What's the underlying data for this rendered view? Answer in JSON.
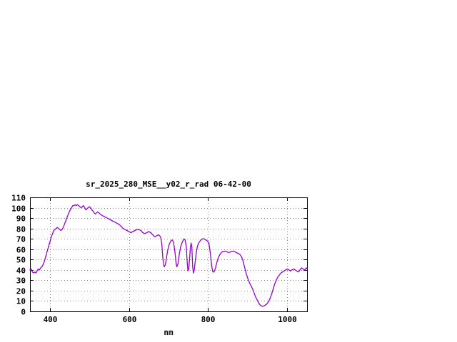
{
  "page": {
    "background": "#ffffff"
  },
  "chart_data": {
    "type": "line",
    "title": "sr_2025_280_MSE__y02_r_rad 06-42-00",
    "xlabel": "nm",
    "ylabel": "",
    "xlim": [
      350,
      1050
    ],
    "ylim": [
      0,
      110
    ],
    "xticks": [
      400,
      600,
      800,
      1000
    ],
    "yticks": [
      0,
      10,
      20,
      30,
      40,
      50,
      60,
      70,
      80,
      90,
      100,
      110
    ],
    "grid": true,
    "legend": "none",
    "line_color": "#9400D3",
    "grid_color": "#888888",
    "border_color": "#000000",
    "text_color": "#000000",
    "series": [
      {
        "name": "sr_2025_280_MSE__y02_r_rad",
        "points": [
          [
            350,
            40
          ],
          [
            353,
            41
          ],
          [
            356,
            38
          ],
          [
            359,
            37
          ],
          [
            362,
            38
          ],
          [
            365,
            37
          ],
          [
            368,
            39
          ],
          [
            371,
            41
          ],
          [
            374,
            40
          ],
          [
            377,
            42
          ],
          [
            380,
            43
          ],
          [
            383,
            45
          ],
          [
            386,
            48
          ],
          [
            389,
            52
          ],
          [
            392,
            56
          ],
          [
            395,
            60
          ],
          [
            398,
            64
          ],
          [
            401,
            68
          ],
          [
            404,
            72
          ],
          [
            407,
            75
          ],
          [
            410,
            78
          ],
          [
            413,
            79
          ],
          [
            416,
            80
          ],
          [
            419,
            81
          ],
          [
            422,
            80
          ],
          [
            425,
            79
          ],
          [
            428,
            78
          ],
          [
            431,
            79
          ],
          [
            434,
            81
          ],
          [
            437,
            84
          ],
          [
            440,
            87
          ],
          [
            443,
            90
          ],
          [
            446,
            93
          ],
          [
            449,
            96
          ],
          [
            452,
            98
          ],
          [
            455,
            100
          ],
          [
            458,
            102
          ],
          [
            461,
            102
          ],
          [
            464,
            103
          ],
          [
            467,
            102
          ],
          [
            470,
            103
          ],
          [
            473,
            102
          ],
          [
            476,
            101
          ],
          [
            479,
            100
          ],
          [
            482,
            101
          ],
          [
            485,
            102
          ],
          [
            488,
            100
          ],
          [
            491,
            98
          ],
          [
            494,
            99
          ],
          [
            497,
            100
          ],
          [
            500,
            101
          ],
          [
            503,
            100
          ],
          [
            506,
            98
          ],
          [
            509,
            97
          ],
          [
            512,
            95
          ],
          [
            515,
            94
          ],
          [
            518,
            95
          ],
          [
            521,
            96
          ],
          [
            524,
            95
          ],
          [
            527,
            94
          ],
          [
            530,
            93
          ],
          [
            535,
            92
          ],
          [
            540,
            91
          ],
          [
            545,
            90
          ],
          [
            550,
            89
          ],
          [
            555,
            88
          ],
          [
            560,
            87
          ],
          [
            565,
            86
          ],
          [
            570,
            85
          ],
          [
            575,
            84
          ],
          [
            580,
            82
          ],
          [
            585,
            80
          ],
          [
            590,
            79
          ],
          [
            595,
            78
          ],
          [
            600,
            77
          ],
          [
            605,
            76
          ],
          [
            610,
            77
          ],
          [
            615,
            78
          ],
          [
            620,
            79
          ],
          [
            625,
            79
          ],
          [
            630,
            78
          ],
          [
            635,
            76
          ],
          [
            640,
            75
          ],
          [
            645,
            76
          ],
          [
            650,
            77
          ],
          [
            655,
            76
          ],
          [
            660,
            74
          ],
          [
            665,
            72
          ],
          [
            670,
            73
          ],
          [
            675,
            74
          ],
          [
            680,
            72
          ],
          [
            683,
            65
          ],
          [
            686,
            50
          ],
          [
            689,
            43
          ],
          [
            692,
            45
          ],
          [
            695,
            52
          ],
          [
            698,
            59
          ],
          [
            702,
            65
          ],
          [
            706,
            68
          ],
          [
            710,
            69
          ],
          [
            713,
            66
          ],
          [
            716,
            58
          ],
          [
            719,
            47
          ],
          [
            721,
            43
          ],
          [
            724,
            46
          ],
          [
            727,
            55
          ],
          [
            731,
            63
          ],
          [
            735,
            67
          ],
          [
            739,
            70
          ],
          [
            742,
            69
          ],
          [
            745,
            62
          ],
          [
            747,
            48
          ],
          [
            749,
            39
          ],
          [
            751,
            41
          ],
          [
            753,
            50
          ],
          [
            755,
            61
          ],
          [
            757,
            66
          ],
          [
            759,
            62
          ],
          [
            761,
            43
          ],
          [
            763,
            37
          ],
          [
            765,
            40
          ],
          [
            768,
            50
          ],
          [
            771,
            59
          ],
          [
            774,
            64
          ],
          [
            778,
            67
          ],
          [
            782,
            69
          ],
          [
            786,
            70
          ],
          [
            790,
            70
          ],
          [
            794,
            69
          ],
          [
            798,
            68
          ],
          [
            802,
            66
          ],
          [
            806,
            55
          ],
          [
            809,
            44
          ],
          [
            812,
            38
          ],
          [
            815,
            38
          ],
          [
            818,
            41
          ],
          [
            822,
            47
          ],
          [
            826,
            52
          ],
          [
            830,
            55
          ],
          [
            834,
            57
          ],
          [
            838,
            58
          ],
          [
            842,
            58
          ],
          [
            846,
            58
          ],
          [
            850,
            57
          ],
          [
            855,
            57
          ],
          [
            860,
            58
          ],
          [
            865,
            58
          ],
          [
            870,
            57
          ],
          [
            875,
            56
          ],
          [
            880,
            55
          ],
          [
            884,
            53
          ],
          [
            888,
            49
          ],
          [
            892,
            43
          ],
          [
            896,
            37
          ],
          [
            900,
            32
          ],
          [
            904,
            28
          ],
          [
            908,
            25
          ],
          [
            912,
            22
          ],
          [
            916,
            18
          ],
          [
            920,
            14
          ],
          [
            924,
            11
          ],
          [
            928,
            8
          ],
          [
            932,
            6
          ],
          [
            936,
            5
          ],
          [
            940,
            5
          ],
          [
            944,
            6
          ],
          [
            948,
            7
          ],
          [
            952,
            9
          ],
          [
            956,
            12
          ],
          [
            960,
            16
          ],
          [
            964,
            21
          ],
          [
            968,
            26
          ],
          [
            972,
            30
          ],
          [
            976,
            33
          ],
          [
            980,
            35
          ],
          [
            984,
            37
          ],
          [
            988,
            38
          ],
          [
            992,
            39
          ],
          [
            996,
            40
          ],
          [
            1000,
            41
          ],
          [
            1004,
            40
          ],
          [
            1008,
            39
          ],
          [
            1012,
            40
          ],
          [
            1016,
            41
          ],
          [
            1020,
            40
          ],
          [
            1024,
            39
          ],
          [
            1028,
            38
          ],
          [
            1032,
            40
          ],
          [
            1036,
            42
          ],
          [
            1040,
            41
          ],
          [
            1044,
            40
          ],
          [
            1048,
            42
          ],
          [
            1050,
            41
          ]
        ]
      }
    ]
  }
}
